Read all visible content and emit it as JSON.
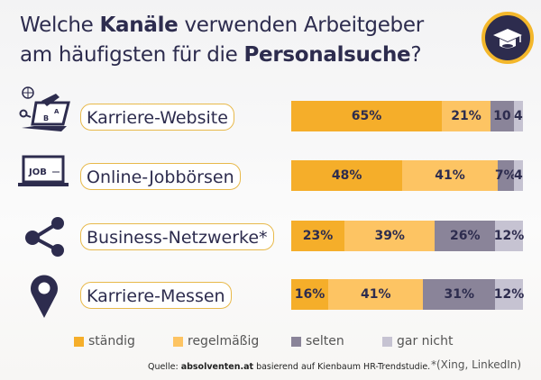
{
  "title": {
    "part1": "Welche ",
    "bold1": "Kanäle",
    "part2": " verwenden Arbeitgeber",
    "part3": "am häufigsten für die ",
    "bold2": "Personalsuche",
    "part4": "?"
  },
  "colors": {
    "staendig": "#f5ae2a",
    "regelmaessig": "#fdc463",
    "selten": "#8a8499",
    "gar_nicht": "#c6c3d2",
    "navy": "#2d2c4e"
  },
  "chart_data": {
    "type": "bar",
    "orientation": "horizontal-stacked-100",
    "title": "Welche Kanäle verwenden Arbeitgeber am häufigsten für die Personalsuche?",
    "categories": [
      "Karriere-Website",
      "Online-Jobbörsen",
      "Business-Netzwerke*",
      "Karriere-Messen"
    ],
    "series": [
      {
        "name": "ständig",
        "values": [
          65,
          48,
          23,
          16
        ],
        "labels": [
          "65%",
          "48%",
          "23%",
          "16%"
        ]
      },
      {
        "name": "regelmäßig",
        "values": [
          21,
          41,
          39,
          41
        ],
        "labels": [
          "21%",
          "41%",
          "39%",
          "41%"
        ]
      },
      {
        "name": "selten",
        "values": [
          10,
          7,
          26,
          31
        ],
        "labels": [
          "10",
          "7%",
          "26%",
          "31%"
        ]
      },
      {
        "name": "gar nicht",
        "values": [
          4,
          4,
          12,
          12
        ],
        "labels": [
          "4",
          "4",
          "12%",
          "12%"
        ]
      }
    ],
    "legend": "bottom"
  },
  "source": {
    "prefix": "Quelle: ",
    "site": "absolventen.at",
    "suffix": " basierend auf Kienbaum HR-Trendstudie."
  },
  "footnote": "*(Xing, LinkedIn)"
}
